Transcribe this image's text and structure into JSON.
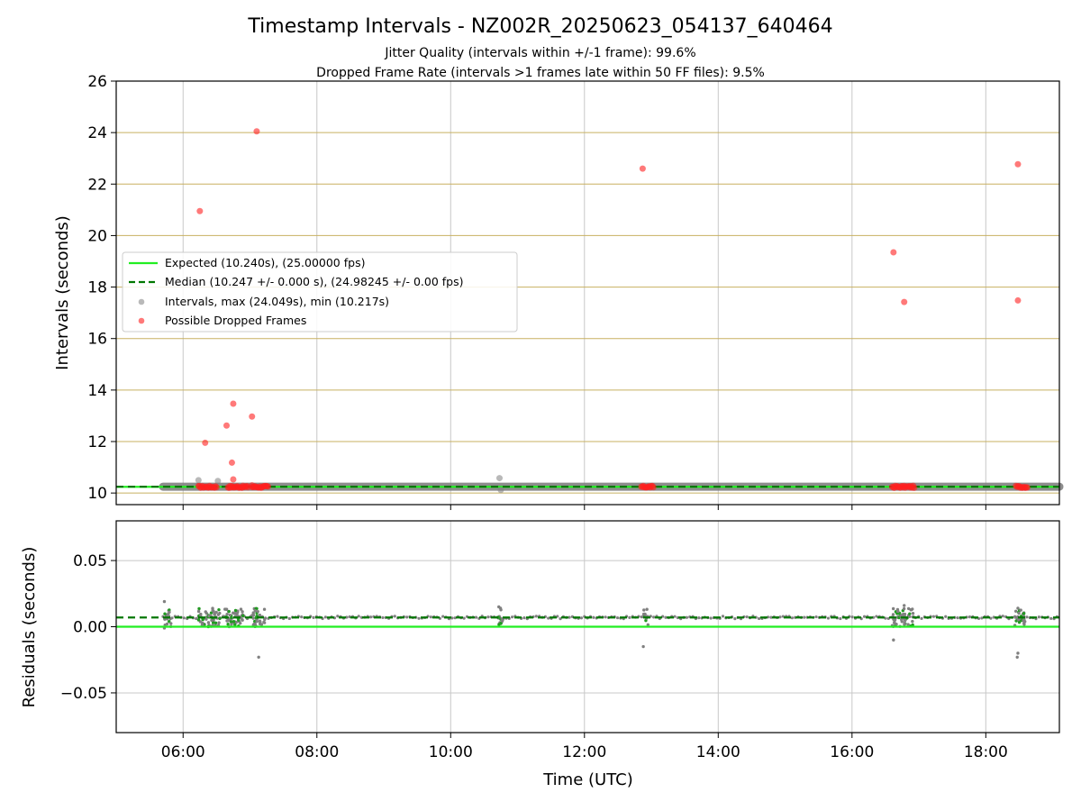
{
  "chart_data": {
    "type": "scatter",
    "title": "Timestamp Intervals - NZ002R_20250623_054137_640464",
    "subtitles": [
      "Jitter Quality (intervals within +/-1 frame): 99.6%",
      "Dropped Frame Rate (intervals >1 frames late within 50 FF files): 9.5%"
    ],
    "xlabel": "Time (UTC)",
    "x_tick_labels": [
      "06:00",
      "08:00",
      "10:00",
      "12:00",
      "14:00",
      "16:00",
      "18:00"
    ],
    "xlim_hours": [
      5.0,
      19.1
    ],
    "top_panel": {
      "ylabel": "Intervals (seconds)",
      "ylim": [
        9.55,
        26.0
      ],
      "y_ticks": [
        10,
        12,
        14,
        16,
        18,
        20,
        22,
        24,
        26
      ],
      "grid": true,
      "legend_position": "center-left",
      "legend": [
        "Expected (10.240s), (25.00000 fps)",
        "Median (10.247 +/- 0.000 s), (24.98245 +/- 0.00 fps)",
        "Intervals, max (24.049s), min (10.217s)",
        "Possible Dropped Frames"
      ],
      "expected_interval": 10.24,
      "median_interval": 10.247,
      "interval_time_range_hours": [
        5.7,
        19.1
      ],
      "intervals_outliers": [
        [
          6.23,
          10.5
        ],
        [
          6.52,
          10.47
        ],
        [
          10.73,
          10.58
        ],
        [
          10.75,
          10.12
        ]
      ],
      "dropped_frames": [
        [
          6.25,
          20.95
        ],
        [
          6.33,
          11.95
        ],
        [
          6.65,
          12.62
        ],
        [
          6.73,
          11.18
        ],
        [
          6.75,
          13.47
        ],
        [
          6.75,
          10.53
        ],
        [
          7.03,
          12.97
        ],
        [
          7.1,
          24.05
        ],
        [
          7.03,
          10.3
        ],
        [
          12.87,
          22.6
        ],
        [
          16.62,
          19.35
        ],
        [
          16.78,
          17.42
        ],
        [
          18.48,
          22.77
        ],
        [
          18.48,
          17.48
        ]
      ],
      "dropped_frame_clusters_hours": [
        [
          6.23,
          6.5
        ],
        [
          6.67,
          6.97
        ],
        [
          7.03,
          7.27
        ],
        [
          12.85,
          13.03
        ],
        [
          16.6,
          16.93
        ],
        [
          18.45,
          18.62
        ]
      ],
      "dropped_frame_cluster_level": 10.24
    },
    "bottom_panel": {
      "ylabel": "Residuals (seconds)",
      "ylim": [
        -0.08,
        0.08
      ],
      "y_ticks": [
        -0.05,
        0.0,
        0.05
      ],
      "y_tick_labels": [
        "−0.05",
        "0.00",
        "0.05"
      ],
      "grid": true,
      "expected_residual": 0.0,
      "median_residual": 0.007,
      "residual_outliers": [
        [
          5.72,
          0.019
        ],
        [
          5.72,
          -0.001
        ],
        [
          7.13,
          -0.023
        ],
        [
          10.72,
          0.015
        ],
        [
          12.88,
          -0.015
        ],
        [
          16.62,
          -0.01
        ],
        [
          16.78,
          0.016
        ],
        [
          18.48,
          -0.02
        ],
        [
          18.47,
          -0.023
        ],
        [
          18.48,
          0.014
        ]
      ],
      "residual_clusters_hours": [
        [
          5.72,
          5.82
        ],
        [
          6.22,
          6.55
        ],
        [
          6.62,
          6.92
        ],
        [
          7.02,
          7.22
        ],
        [
          10.7,
          10.78
        ],
        [
          12.87,
          12.95
        ],
        [
          16.6,
          16.92
        ],
        [
          18.43,
          18.6
        ]
      ]
    },
    "colors": {
      "expected": "#22ee22",
      "median": "#007700",
      "intervals": "#808080",
      "dropped": "#ff2020",
      "grid_x": "#c8c8c8",
      "grid_y_top": "#c8b060",
      "grid_y_bottom": "#c8c8c8"
    }
  }
}
